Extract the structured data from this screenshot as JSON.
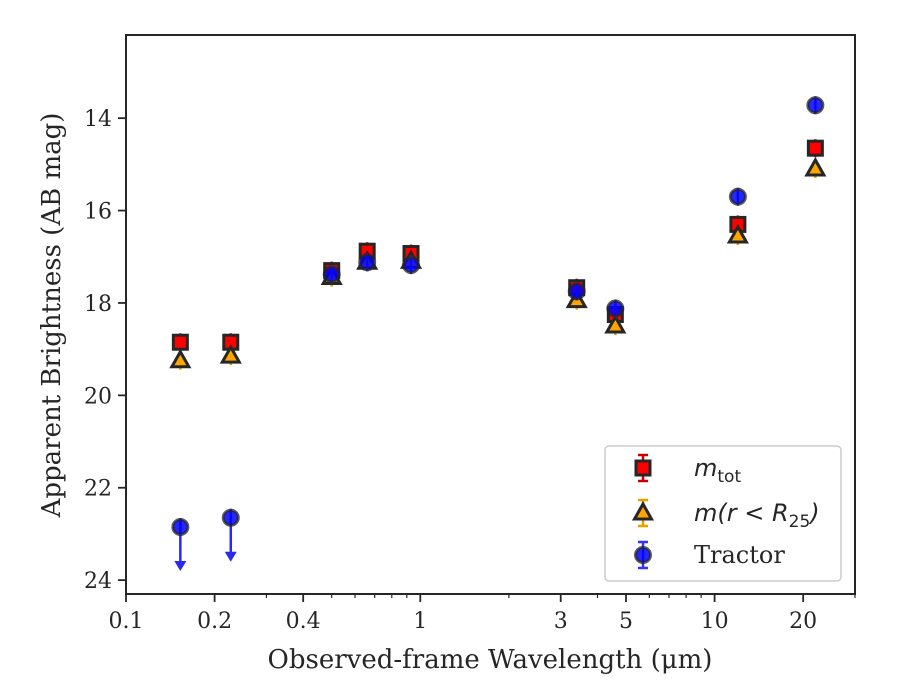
{
  "chart_data": {
    "type": "scatter",
    "xlabel": "Observed-frame Wavelength (μm)",
    "ylabel": "Apparent Brightness (AB mag)",
    "xscale": "log",
    "xlim": [
      0.1,
      30
    ],
    "ylim": [
      24.3,
      12.2
    ],
    "y_inverted": true,
    "x_ticks": [
      {
        "value": 0.1,
        "label": "0.1"
      },
      {
        "value": 0.2,
        "label": "0.2"
      },
      {
        "value": 0.4,
        "label": "0.4"
      },
      {
        "value": 1,
        "label": "1"
      },
      {
        "value": 3,
        "label": "3"
      },
      {
        "value": 5,
        "label": "5"
      },
      {
        "value": 10,
        "label": "10"
      },
      {
        "value": 20,
        "label": "20"
      }
    ],
    "y_ticks": [
      {
        "value": 14,
        "label": "14"
      },
      {
        "value": 16,
        "label": "16"
      },
      {
        "value": 18,
        "label": "18"
      },
      {
        "value": 20,
        "label": "20"
      },
      {
        "value": 22,
        "label": "22"
      },
      {
        "value": 24,
        "label": "24"
      }
    ],
    "grid": false,
    "legend_position": "lower-right",
    "series": [
      {
        "name": "m_tot",
        "marker": "square",
        "fill": "#ff0000",
        "edge": "#262626",
        "errcolor": "#cc0000",
        "points": [
          {
            "x": 0.153,
            "y": 18.85
          },
          {
            "x": 0.227,
            "y": 18.85
          },
          {
            "x": 0.5,
            "y": 17.3
          },
          {
            "x": 0.66,
            "y": 16.88
          },
          {
            "x": 0.93,
            "y": 16.93
          },
          {
            "x": 3.4,
            "y": 17.67
          },
          {
            "x": 4.6,
            "y": 18.25
          },
          {
            "x": 12.0,
            "y": 16.3
          },
          {
            "x": 22.0,
            "y": 14.65
          }
        ]
      },
      {
        "name": "m(r < R25)",
        "marker": "triangle",
        "fill": "#ffa500",
        "edge": "#262626",
        "errcolor": "#e6a000",
        "points": [
          {
            "x": 0.153,
            "y": 19.25
          },
          {
            "x": 0.227,
            "y": 19.15
          },
          {
            "x": 0.5,
            "y": 17.45
          },
          {
            "x": 0.66,
            "y": 17.12
          },
          {
            "x": 0.93,
            "y": 17.1
          },
          {
            "x": 3.4,
            "y": 17.95
          },
          {
            "x": 4.6,
            "y": 18.5
          },
          {
            "x": 12.0,
            "y": 16.55
          },
          {
            "x": 22.0,
            "y": 15.1
          }
        ]
      },
      {
        "name": "Tractor",
        "marker": "circle",
        "fill": "#0000ff",
        "edge": "#262626",
        "errcolor": "#3333ff",
        "points": [
          {
            "x": 0.153,
            "y": 22.85,
            "upper_limit": true
          },
          {
            "x": 0.227,
            "y": 22.65,
            "upper_limit": true
          },
          {
            "x": 0.5,
            "y": 17.38
          },
          {
            "x": 0.66,
            "y": 17.12
          },
          {
            "x": 0.93,
            "y": 17.18
          },
          {
            "x": 3.4,
            "y": 17.75
          },
          {
            "x": 4.6,
            "y": 18.12
          },
          {
            "x": 12.0,
            "y": 15.7
          },
          {
            "x": 22.0,
            "y": 13.72
          }
        ]
      }
    ]
  },
  "legend": {
    "entries": [
      {
        "marker": "square",
        "label_base": "m",
        "label_sub": "tot",
        "label_rest": ""
      },
      {
        "marker": "triangle",
        "label_base": "m(r < R",
        "label_sub": "25",
        "label_rest": ")"
      },
      {
        "marker": "circle",
        "label_base": "Tractor",
        "label_sub": "",
        "label_rest": ""
      }
    ]
  }
}
